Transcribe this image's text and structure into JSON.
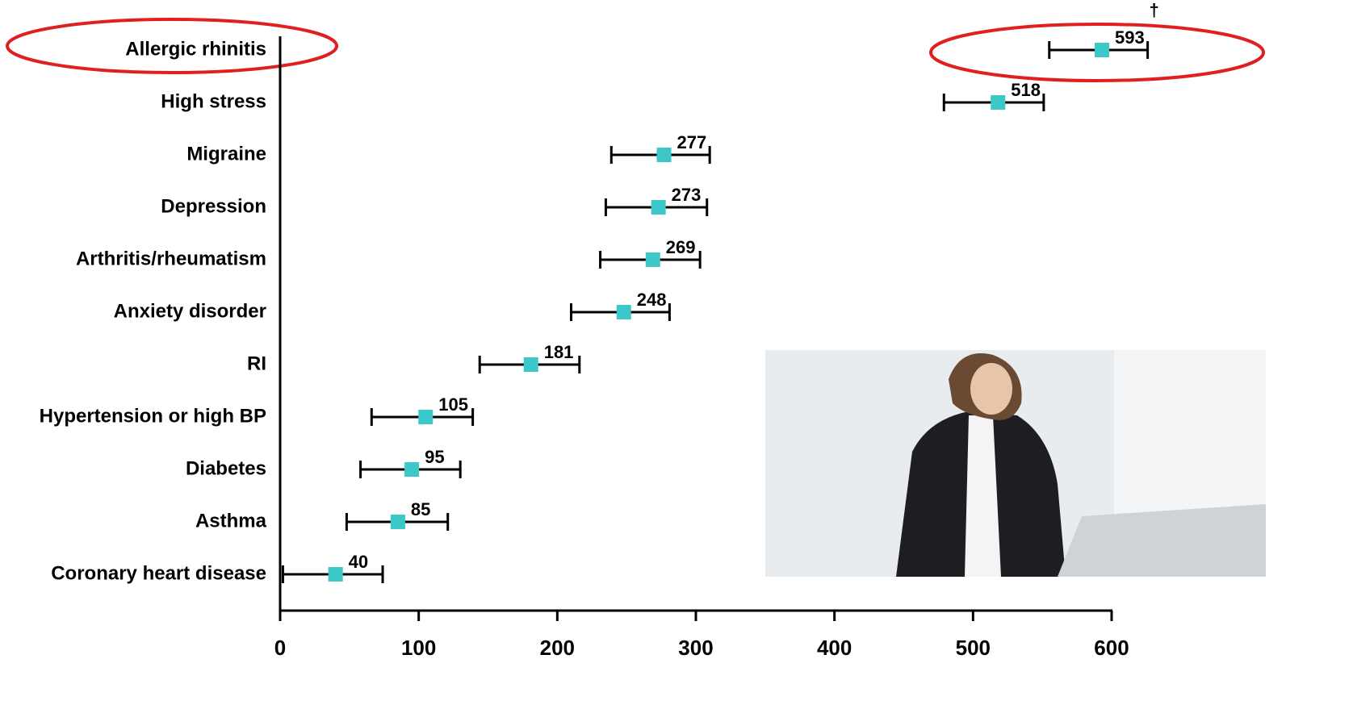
{
  "chart_data": {
    "type": "errorbar",
    "categories": [
      "Allergic rhinitis",
      "High stress",
      "Migraine",
      "Depression",
      "Arthritis/rheumatism",
      "Anxiety disorder",
      "RI",
      "Hypertension or high BP",
      "Diabetes",
      "Asthma",
      "Coronary heart disease"
    ],
    "series": [
      {
        "color": "#3cc8c8",
        "values": [
          593,
          518,
          277,
          273,
          269,
          248,
          181,
          105,
          95,
          85,
          40
        ],
        "lower": [
          555,
          479,
          239,
          235,
          231,
          210,
          144,
          66,
          58,
          48,
          2
        ],
        "upper": [
          626,
          551,
          310,
          308,
          303,
          281,
          216,
          139,
          130,
          121,
          74
        ]
      }
    ],
    "annotation": "†",
    "xlim": [
      0,
      600
    ],
    "xticks": [
      0,
      100,
      200,
      300,
      400,
      500,
      600
    ]
  }
}
